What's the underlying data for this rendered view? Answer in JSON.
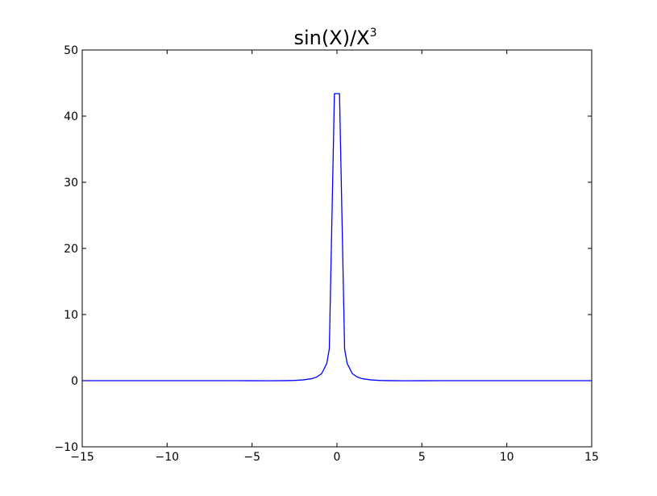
{
  "chart_data": {
    "type": "line",
    "title": "sin(X)/X",
    "title_superscript": "3",
    "xlabel": "",
    "ylabel": "",
    "xlim": [
      -15,
      15
    ],
    "ylim": [
      -10,
      50
    ],
    "xticks": [
      -15,
      -10,
      -5,
      0,
      5,
      10,
      15
    ],
    "yticks": [
      -10,
      0,
      10,
      20,
      30,
      40,
      50
    ],
    "xtick_labels": [
      "−15",
      "−10",
      "−5",
      "0",
      "5",
      "10",
      "15"
    ],
    "ytick_labels": [
      "−10",
      "0",
      "10",
      "20",
      "30",
      "40",
      "50"
    ],
    "grid": false,
    "line_color": "#0000ff",
    "series": [
      {
        "x": [
          -15,
          -14,
          -13,
          -12,
          -11,
          -10,
          -9,
          -8,
          -7,
          -6,
          -5,
          -4,
          -3,
          -2.5,
          -2,
          -1.5,
          -1.2,
          -0.9,
          -0.6,
          -0.45,
          -0.15,
          0.15,
          0.45,
          0.6,
          0.9,
          1.2,
          1.5,
          2,
          2.5,
          3,
          4,
          5,
          6,
          7,
          8,
          9,
          10,
          11,
          12,
          13,
          14,
          15
        ],
        "y": [
          0.0002,
          -0.0004,
          0.0002,
          0.0003,
          -0.0007,
          -0.0005,
          0.0006,
          0.0019,
          0.0019,
          -0.0013,
          -0.0077,
          -0.0118,
          0.0052,
          0.038,
          0.114,
          0.296,
          0.54,
          1.07,
          2.61,
          4.8,
          43.4,
          43.4,
          4.8,
          2.61,
          1.07,
          0.54,
          0.296,
          0.114,
          0.038,
          0.0052,
          -0.0118,
          -0.0077,
          -0.0013,
          0.0019,
          0.0019,
          0.0006,
          -0.0005,
          -0.0007,
          0.0003,
          0.0002,
          -0.0004,
          0.0002
        ]
      }
    ]
  }
}
